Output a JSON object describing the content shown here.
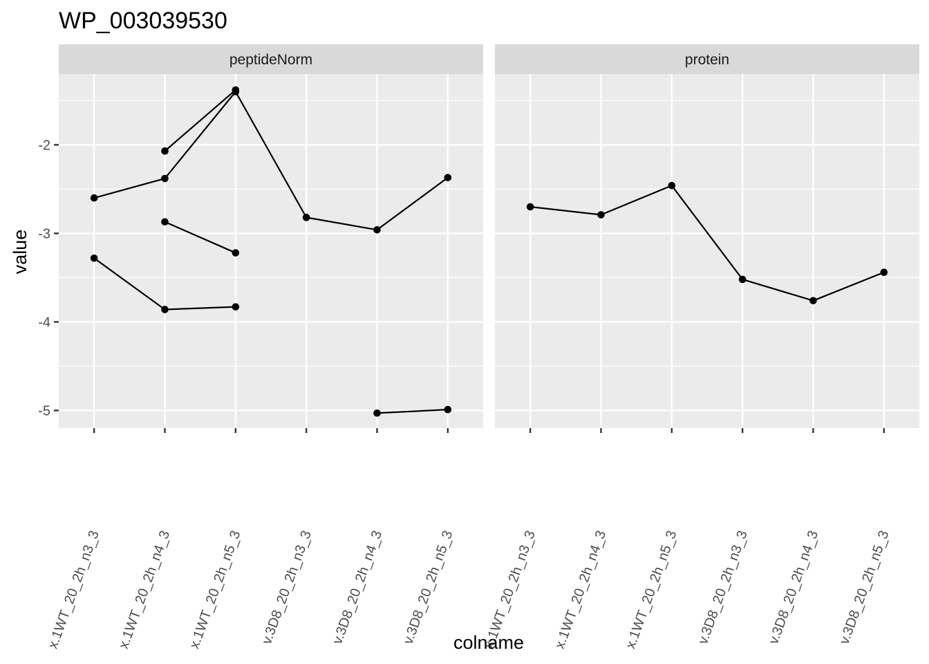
{
  "chart_data": {
    "type": "line",
    "title": "WP_003039530",
    "xlabel": "colname",
    "ylabel": "value",
    "ylim": [
      -5.2,
      -1.2
    ],
    "yticks": [
      -2,
      -3,
      -4,
      -5
    ],
    "categories": [
      "x.1WT_20_2h_n3_3",
      "x.1WT_20_2h_n4_3",
      "x.1WT_20_2h_n5_3",
      "v.3D8_20_2h_n3_3",
      "v.3D8_20_2h_n4_3",
      "v.3D8_20_2h_n5_3"
    ],
    "facets": [
      {
        "label": "peptideNorm",
        "series": [
          {
            "values": [
              -2.6,
              -2.38,
              -1.4,
              -2.82,
              -2.96,
              -2.37
            ]
          },
          {
            "values": [
              null,
              -2.07,
              -1.38,
              null,
              null,
              null
            ]
          },
          {
            "values": [
              null,
              -2.87,
              -3.22,
              null,
              null,
              null
            ]
          },
          {
            "values": [
              -3.28,
              -3.86,
              -3.83,
              null,
              null,
              null
            ]
          },
          {
            "values": [
              null,
              null,
              null,
              null,
              -5.03,
              -4.99
            ]
          }
        ]
      },
      {
        "label": "protein",
        "series": [
          {
            "values": [
              -2.7,
              -2.79,
              -2.46,
              -3.52,
              -3.76,
              -3.44
            ]
          }
        ]
      }
    ]
  }
}
